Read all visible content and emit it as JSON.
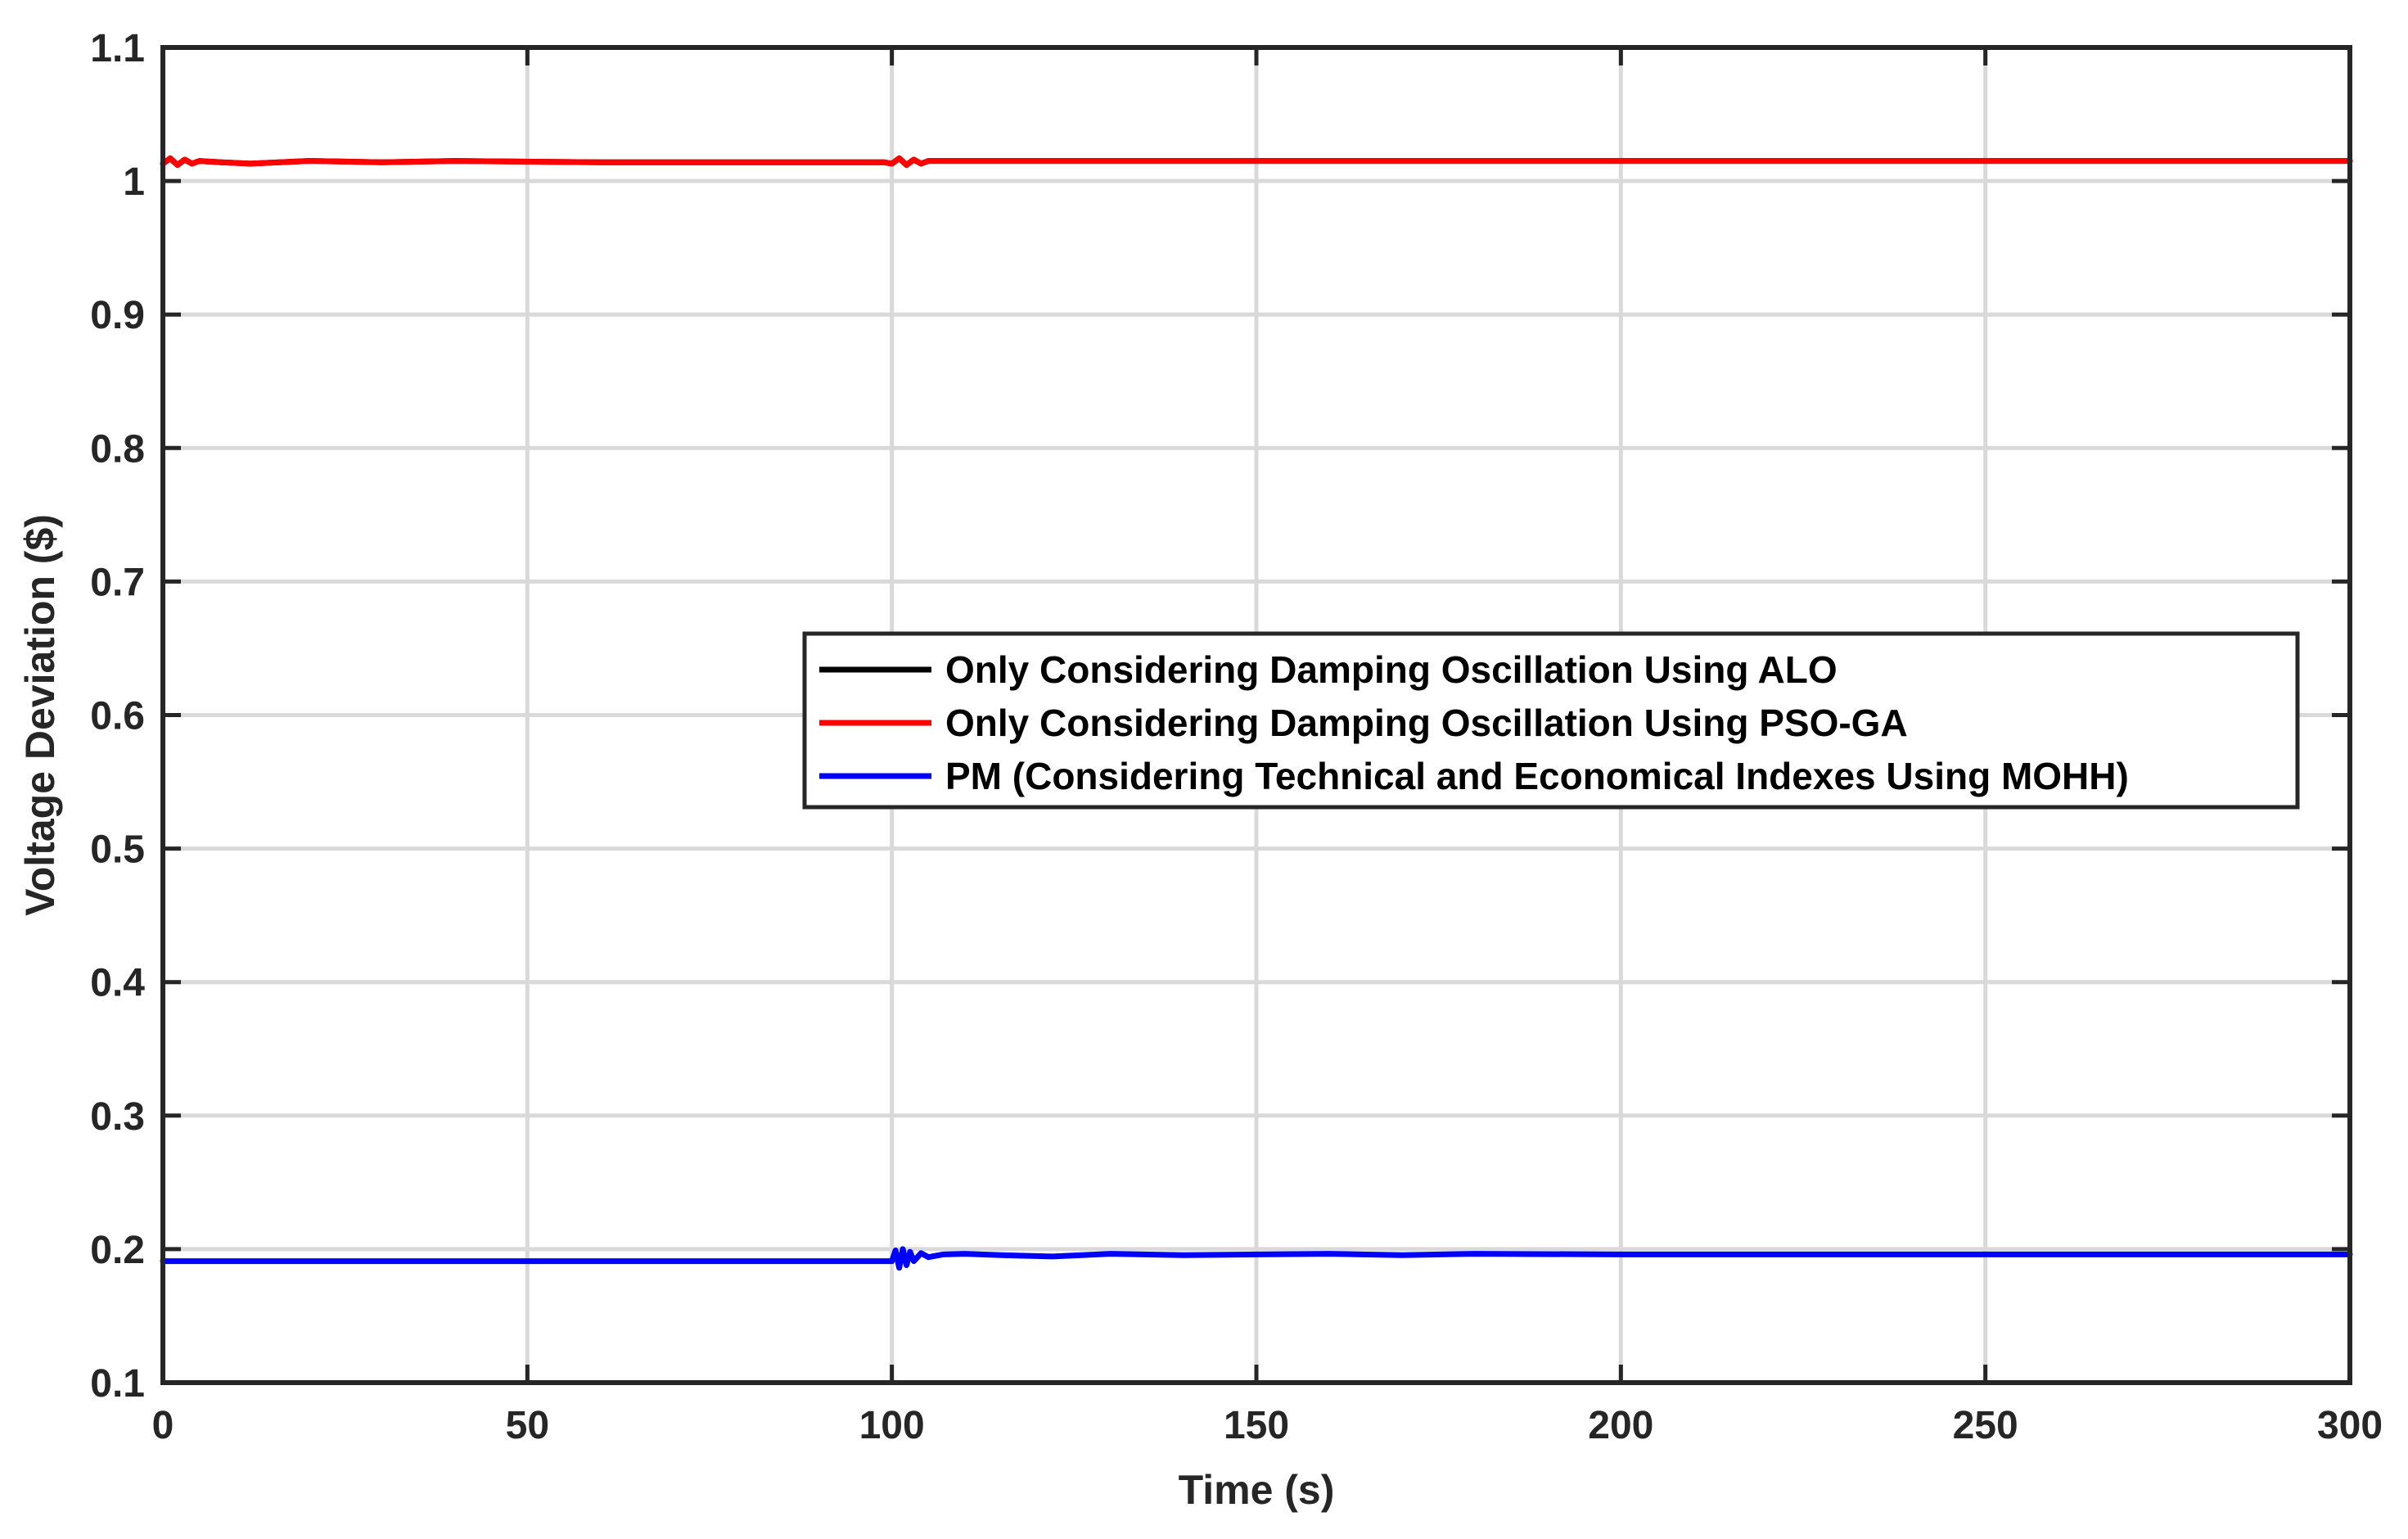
{
  "chart_data": {
    "type": "line",
    "title": "",
    "xlabel": "Time (s)",
    "ylabel": "Voltage Deviation ($)",
    "xlim": [
      0,
      300
    ],
    "ylim": [
      0.1,
      1.1
    ],
    "xticks": [
      0,
      50,
      100,
      150,
      200,
      250,
      300
    ],
    "xtick_labels": [
      "0",
      "50",
      "100",
      "150",
      "200",
      "250",
      "300"
    ],
    "yticks": [
      0.1,
      0.2,
      0.3,
      0.4,
      0.5,
      0.6,
      0.7,
      0.8,
      0.9,
      1,
      1.1
    ],
    "ytick_labels": [
      "0.1",
      "0.2",
      "0.3",
      "0.4",
      "0.5",
      "0.6",
      "0.7",
      "0.8",
      "0.9",
      "1",
      "1.1"
    ],
    "grid": true,
    "legend_position": "center-right",
    "series": [
      {
        "name": "Only Considering Damping Oscillation Using ALO",
        "color": "#000000",
        "x": [
          0,
          1,
          2,
          3,
          4,
          5,
          8,
          12,
          20,
          30,
          40,
          60,
          80,
          99,
          100,
          101,
          102,
          103,
          104,
          105,
          110,
          120,
          150,
          200,
          250,
          300
        ],
        "y": [
          1.013,
          1.017,
          1.012,
          1.016,
          1.013,
          1.015,
          1.014,
          1.013,
          1.015,
          1.014,
          1.015,
          1.014,
          1.014,
          1.014,
          1.013,
          1.017,
          1.012,
          1.016,
          1.013,
          1.015,
          1.015,
          1.015,
          1.015,
          1.015,
          1.015,
          1.015
        ]
      },
      {
        "name": "Only Considering Damping Oscillation Using PSO-GA",
        "color": "#ff0000",
        "x": [
          0,
          1,
          2,
          3,
          4,
          5,
          8,
          12,
          20,
          30,
          40,
          60,
          80,
          99,
          100,
          101,
          102,
          103,
          104,
          105,
          110,
          120,
          150,
          200,
          250,
          300
        ],
        "y": [
          1.013,
          1.017,
          1.012,
          1.016,
          1.013,
          1.015,
          1.014,
          1.013,
          1.015,
          1.014,
          1.015,
          1.014,
          1.014,
          1.014,
          1.013,
          1.017,
          1.012,
          1.016,
          1.013,
          1.015,
          1.015,
          1.015,
          1.015,
          1.015,
          1.015,
          1.015
        ]
      },
      {
        "name": "PM (Considering Technical and Economical Indexes Using MOHH)",
        "color": "#0000ff",
        "x": [
          0,
          50,
          99,
          100,
          100.5,
          101,
          101.5,
          102,
          102.5,
          103,
          104,
          105,
          107,
          110,
          115,
          122,
          130,
          140,
          150,
          160,
          170,
          180,
          200,
          250,
          300
        ],
        "y": [
          0.191,
          0.191,
          0.191,
          0.191,
          0.199,
          0.186,
          0.2,
          0.188,
          0.198,
          0.191,
          0.197,
          0.194,
          0.196,
          0.1965,
          0.1955,
          0.1945,
          0.1965,
          0.1955,
          0.196,
          0.1965,
          0.1955,
          0.1965,
          0.196,
          0.196,
          0.196
        ]
      }
    ]
  }
}
